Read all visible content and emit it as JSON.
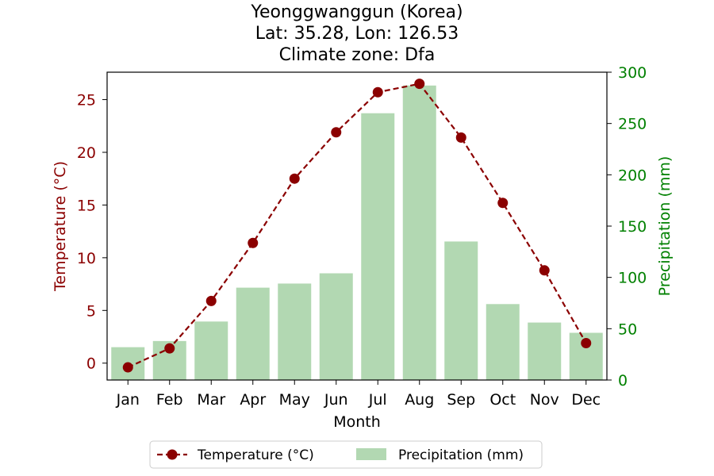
{
  "colors": {
    "temperature": "#8b0000",
    "precipitation_bar": "#b2d8b2",
    "precipitation_axis": "#008000",
    "axis": "#000000"
  },
  "chart_data": {
    "type": "bar",
    "title_lines": [
      "Yeonggwanggun (Korea)",
      "Lat: 35.28, Lon: 126.53",
      "Climate zone: Dfa"
    ],
    "xlabel": "Month",
    "ylabel_left": "Temperature (°C)",
    "ylabel_right": "Precipitation (mm)",
    "categories": [
      "Jan",
      "Feb",
      "Mar",
      "Apr",
      "May",
      "Jun",
      "Jul",
      "Aug",
      "Sep",
      "Oct",
      "Nov",
      "Dec"
    ],
    "ylim_left": [
      -1.6,
      27.6
    ],
    "ylim_right": [
      0,
      300
    ],
    "yticks_left": [
      0,
      5,
      10,
      15,
      20,
      25
    ],
    "yticks_right": [
      0,
      50,
      100,
      150,
      200,
      250,
      300
    ],
    "grid": false,
    "legend_position": "bottom-center",
    "series": [
      {
        "name": "Temperature (°C)",
        "type": "line",
        "axis": "left",
        "style": "dashed-with-circle-markers",
        "values": [
          -0.4,
          1.4,
          5.9,
          11.4,
          17.5,
          21.9,
          25.7,
          26.5,
          21.4,
          15.2,
          8.8,
          1.9
        ]
      },
      {
        "name": "Precipitation (mm)",
        "type": "bar",
        "axis": "right",
        "values": [
          32,
          38,
          57,
          90,
          94,
          104,
          260,
          287,
          135,
          74,
          56,
          46
        ]
      }
    ]
  }
}
